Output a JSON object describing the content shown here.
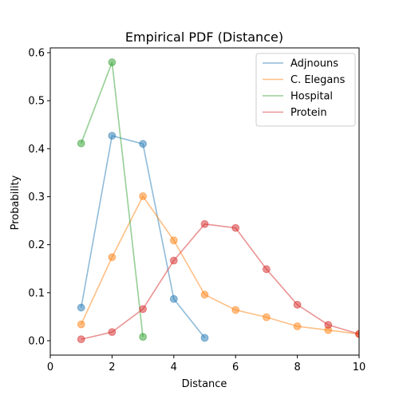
{
  "chart_data": {
    "type": "line",
    "title": "Empirical PDF (Distance)",
    "xlabel": "Distance",
    "ylabel": "Probability",
    "xlim": [
      0,
      10
    ],
    "ylim": [
      -0.03,
      0.61
    ],
    "xticks": [
      0,
      2,
      4,
      6,
      8,
      10
    ],
    "xtick_labels": [
      "0",
      "2",
      "4",
      "6",
      "8",
      "10"
    ],
    "yticks": [
      0.0,
      0.1,
      0.2,
      0.3,
      0.4,
      0.5,
      0.6
    ],
    "ytick_labels": [
      "0.0",
      "0.1",
      "0.2",
      "0.3",
      "0.4",
      "0.5",
      "0.6"
    ],
    "grid": false,
    "legend_position": "top-right",
    "series": [
      {
        "name": "Adjnouns",
        "color": "#1f77b4",
        "x": [
          1,
          2,
          3,
          4,
          5
        ],
        "y": [
          0.069,
          0.427,
          0.41,
          0.087,
          0.006
        ]
      },
      {
        "name": "C. Elegans",
        "color": "#ff7f0e",
        "x": [
          1,
          2,
          3,
          4,
          5,
          6,
          7,
          8,
          9,
          10
        ],
        "y": [
          0.034,
          0.174,
          0.301,
          0.209,
          0.096,
          0.064,
          0.049,
          0.03,
          0.022,
          0.014
        ]
      },
      {
        "name": "Hospital",
        "color": "#2ca02c",
        "x": [
          1,
          2,
          3
        ],
        "y": [
          0.411,
          0.58,
          0.008
        ]
      },
      {
        "name": "Protein",
        "color": "#d62728",
        "x": [
          1,
          2,
          3,
          4,
          5,
          6,
          7,
          8,
          9,
          10
        ],
        "y": [
          0.003,
          0.018,
          0.066,
          0.167,
          0.243,
          0.235,
          0.149,
          0.075,
          0.033,
          0.014
        ]
      }
    ]
  }
}
